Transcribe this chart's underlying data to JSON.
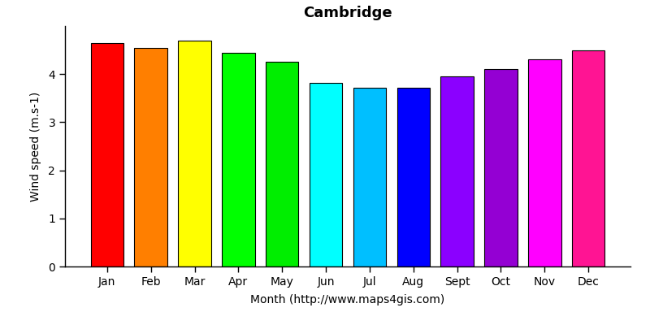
{
  "title": "Cambridge",
  "xlabel": "Month (http://www.maps4gis.com)",
  "ylabel": "Wind speed (m.s-1)",
  "categories": [
    "Jan",
    "Feb",
    "Mar",
    "Apr",
    "May",
    "Jun",
    "Jul",
    "Aug",
    "Sept",
    "Oct",
    "Nov",
    "Dec"
  ],
  "values": [
    4.65,
    4.55,
    4.7,
    4.45,
    4.25,
    3.82,
    3.72,
    3.72,
    3.95,
    4.1,
    4.3,
    4.5
  ],
  "bar_colors": [
    "#FF0000",
    "#FF7F00",
    "#FFFF00",
    "#00FF00",
    "#00EE00",
    "#00FFFF",
    "#00BFFF",
    "#0000FF",
    "#8B00FF",
    "#9400D3",
    "#FF00FF",
    "#FF1493"
  ],
  "ylim": [
    0,
    5
  ],
  "yticks": [
    0,
    1,
    2,
    3,
    4
  ],
  "background_color": "#FFFFFF",
  "title_fontsize": 13,
  "label_fontsize": 10,
  "tick_fontsize": 10
}
